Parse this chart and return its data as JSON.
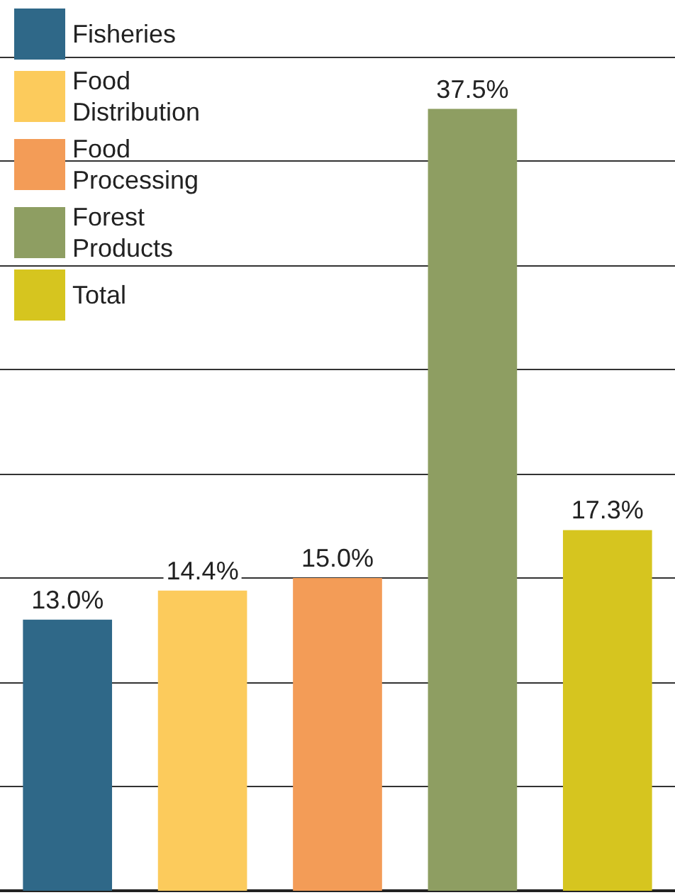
{
  "chart_data": {
    "type": "bar",
    "categories": [
      null,
      null,
      null,
      null,
      null
    ],
    "stacked": true,
    "series": [
      {
        "name": "Fisheries",
        "color": "#2f6888",
        "values": [
          13.0,
          null,
          null,
          null,
          null
        ],
        "value_labels": [
          "13.0%",
          null,
          null,
          null,
          null
        ]
      },
      {
        "name": "Food Distribution",
        "color": "#fccb5c",
        "values": [
          null,
          14.4,
          null,
          null,
          null
        ],
        "value_labels": [
          null,
          "14.4%",
          null,
          null,
          null
        ]
      },
      {
        "name": "Food Processing",
        "color": "#f39c57",
        "values": [
          null,
          null,
          15.0,
          null,
          null
        ],
        "value_labels": [
          null,
          null,
          "15.0%",
          null,
          null
        ]
      },
      {
        "name": "Forest Products",
        "color": "#8e9e62",
        "values": [
          null,
          null,
          null,
          37.5,
          null
        ],
        "value_labels": [
          null,
          null,
          null,
          "37.5%",
          null
        ]
      },
      {
        "name": "Total",
        "color": "#d6c51f",
        "values": [
          null,
          null,
          null,
          null,
          17.3
        ],
        "value_labels": [
          null,
          null,
          null,
          null,
          "17.3%"
        ]
      }
    ],
    "yticks": [
      {
        "value": 5,
        "label": null
      },
      {
        "value": 10,
        "label": null
      },
      {
        "value": 15,
        "label": null
      },
      {
        "value": 20,
        "label": null
      },
      {
        "value": 25,
        "label": null
      },
      {
        "value": 30,
        "label": null
      },
      {
        "value": 35,
        "label": null
      },
      {
        "value": 40,
        "label": null
      }
    ],
    "grid": "y",
    "legend": "top left",
    "tick_labels": false
  }
}
